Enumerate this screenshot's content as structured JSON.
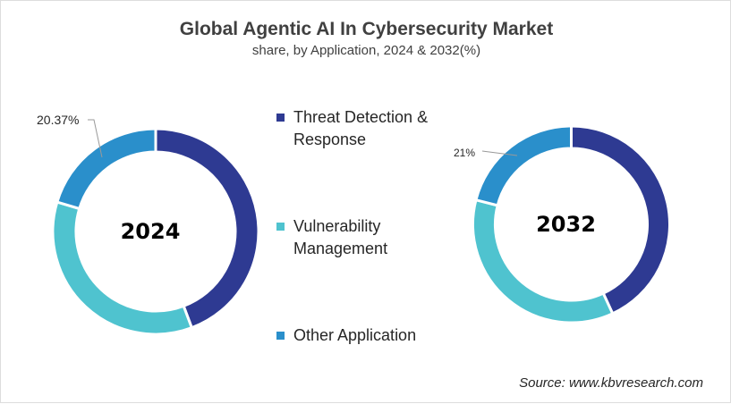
{
  "chart_data": [
    {
      "type": "pie",
      "donut": true,
      "center_label": "2024",
      "categories": [
        "Threat Detection & Response",
        "Vulnerability Management",
        "Other Application"
      ],
      "values": [
        44.3,
        35.33,
        20.37
      ],
      "data_labels": [
        "",
        "",
        "20.37%"
      ],
      "colors": [
        "#2E3A92",
        "#4FC3CF",
        "#2A8FCB"
      ]
    },
    {
      "type": "pie",
      "donut": true,
      "center_label": "2032",
      "categories": [
        "Threat Detection & Response",
        "Vulnerability Management",
        "Other Application"
      ],
      "values": [
        43.1,
        35.9,
        21
      ],
      "data_labels": [
        "",
        "",
        "21%"
      ],
      "colors": [
        "#2E3A92",
        "#4FC3CF",
        "#2A8FCB"
      ]
    }
  ],
  "title": "Global Agentic AI In Cybersecurity Market",
  "subtitle": "share, by Application, 2024 & 2032(%)",
  "legend": [
    {
      "label": "Threat Detection & Response",
      "color": "#2E3A92"
    },
    {
      "label": "Vulnerability Management",
      "color": "#4FC3CF"
    },
    {
      "label": "Other Application",
      "color": "#2A8FCB"
    }
  ],
  "source": "Source: www.kbvresearch.com"
}
